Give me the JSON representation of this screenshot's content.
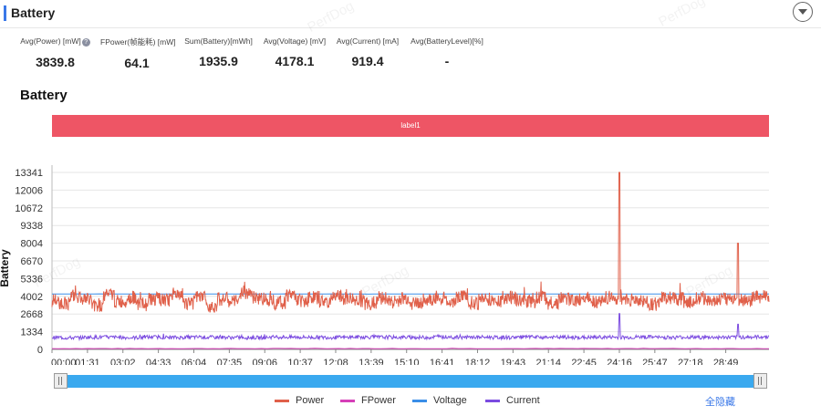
{
  "panel": {
    "title": "Battery"
  },
  "watermark": "PerfDog",
  "stats": [
    {
      "label": "Avg(Power) [mW]",
      "value": "3839.8",
      "help": "?"
    },
    {
      "label": "FPower(帧能耗) [mW]",
      "value": "64.1"
    },
    {
      "label": "Sum(Battery)[mWh]",
      "value": "1935.9"
    },
    {
      "label": "Avg(Voltage) [mV]",
      "value": "4178.1"
    },
    {
      "label": "Avg(Current) [mA]",
      "value": "919.4"
    },
    {
      "label": "Avg(BatteryLevel)[%]",
      "value": "-"
    }
  ],
  "section_title": "Battery",
  "label_band": "label1",
  "legend": {
    "items": [
      {
        "name": "Power",
        "color": "#e0604a"
      },
      {
        "name": "FPower",
        "color": "#d63fb8"
      },
      {
        "name": "Voltage",
        "color": "#3a8ee8"
      },
      {
        "name": "Current",
        "color": "#7b4be0"
      }
    ],
    "hide_all": "全隐藏"
  },
  "chart_data": {
    "type": "line",
    "title": "",
    "xlabel": "",
    "ylabel": "Battery",
    "ylim": [
      0,
      13341
    ],
    "yticks": [
      0,
      1334,
      2668,
      4002,
      5336,
      6670,
      8004,
      9338,
      10672,
      12006,
      13341
    ],
    "xticks": [
      "00:00",
      "01:31",
      "03:02",
      "04:33",
      "06:04",
      "07:35",
      "09:06",
      "10:37",
      "12:08",
      "13:39",
      "15:10",
      "16:41",
      "18:12",
      "19:43",
      "21:14",
      "22:45",
      "24:16",
      "25:47",
      "27:18",
      "28:49"
    ],
    "x_range": [
      "00:00",
      "30:40"
    ],
    "grid": true,
    "legend_position": "bottom",
    "series": [
      {
        "name": "Power",
        "color": "#e0604a",
        "values": [
          3700,
          3500,
          4000,
          3800,
          3300,
          4100,
          3600,
          3900,
          3400,
          3800,
          3700,
          4200,
          3500,
          3900,
          3300,
          3800,
          3600,
          4300,
          3900,
          3800,
          3500,
          4100,
          3700,
          3900,
          3600,
          4000,
          3800,
          3700,
          3400,
          3900,
          3600,
          3800,
          3500,
          3700,
          3900,
          3600,
          4000,
          3500,
          3800,
          3700,
          3900,
          3800,
          3600,
          3900,
          3500,
          3800,
          3700,
          4000,
          3600,
          3900,
          13341,
          3700,
          3600,
          3400,
          3900,
          3800,
          3600,
          3900,
          3700,
          3800,
          8004,
          3700,
          3900,
          4000
        ],
        "spikes": [
          {
            "x": "24:16",
            "value": 13341
          },
          {
            "x": "29:20",
            "value": 8004
          }
        ]
      },
      {
        "name": "FPower",
        "color": "#d63fb8",
        "values": [
          64,
          64,
          64,
          64,
          64,
          64,
          64,
          64,
          64,
          64,
          64,
          64,
          64,
          64,
          64,
          64,
          64,
          64,
          64,
          64
        ]
      },
      {
        "name": "Voltage",
        "color": "#3a8ee8",
        "values": [
          4178,
          4180,
          4178,
          4177,
          4179,
          4178,
          4180,
          4178,
          4176,
          4179,
          4178,
          4180,
          4177,
          4178,
          4179,
          4178,
          4177,
          4178,
          4179,
          4178
        ]
      },
      {
        "name": "Current",
        "color": "#7b4be0",
        "values": [
          900,
          880,
          920,
          910,
          890,
          930,
          900,
          920,
          910,
          900,
          890,
          930,
          920,
          910,
          900,
          930,
          920,
          910,
          900,
          940,
          910,
          920,
          900,
          930,
          910,
          2700,
          900,
          920,
          910,
          930,
          900,
          920,
          910,
          1900,
          930,
          950
        ],
        "spikes": [
          {
            "x": "24:16",
            "value": 2700
          },
          {
            "x": "29:20",
            "value": 1900
          }
        ]
      }
    ]
  }
}
